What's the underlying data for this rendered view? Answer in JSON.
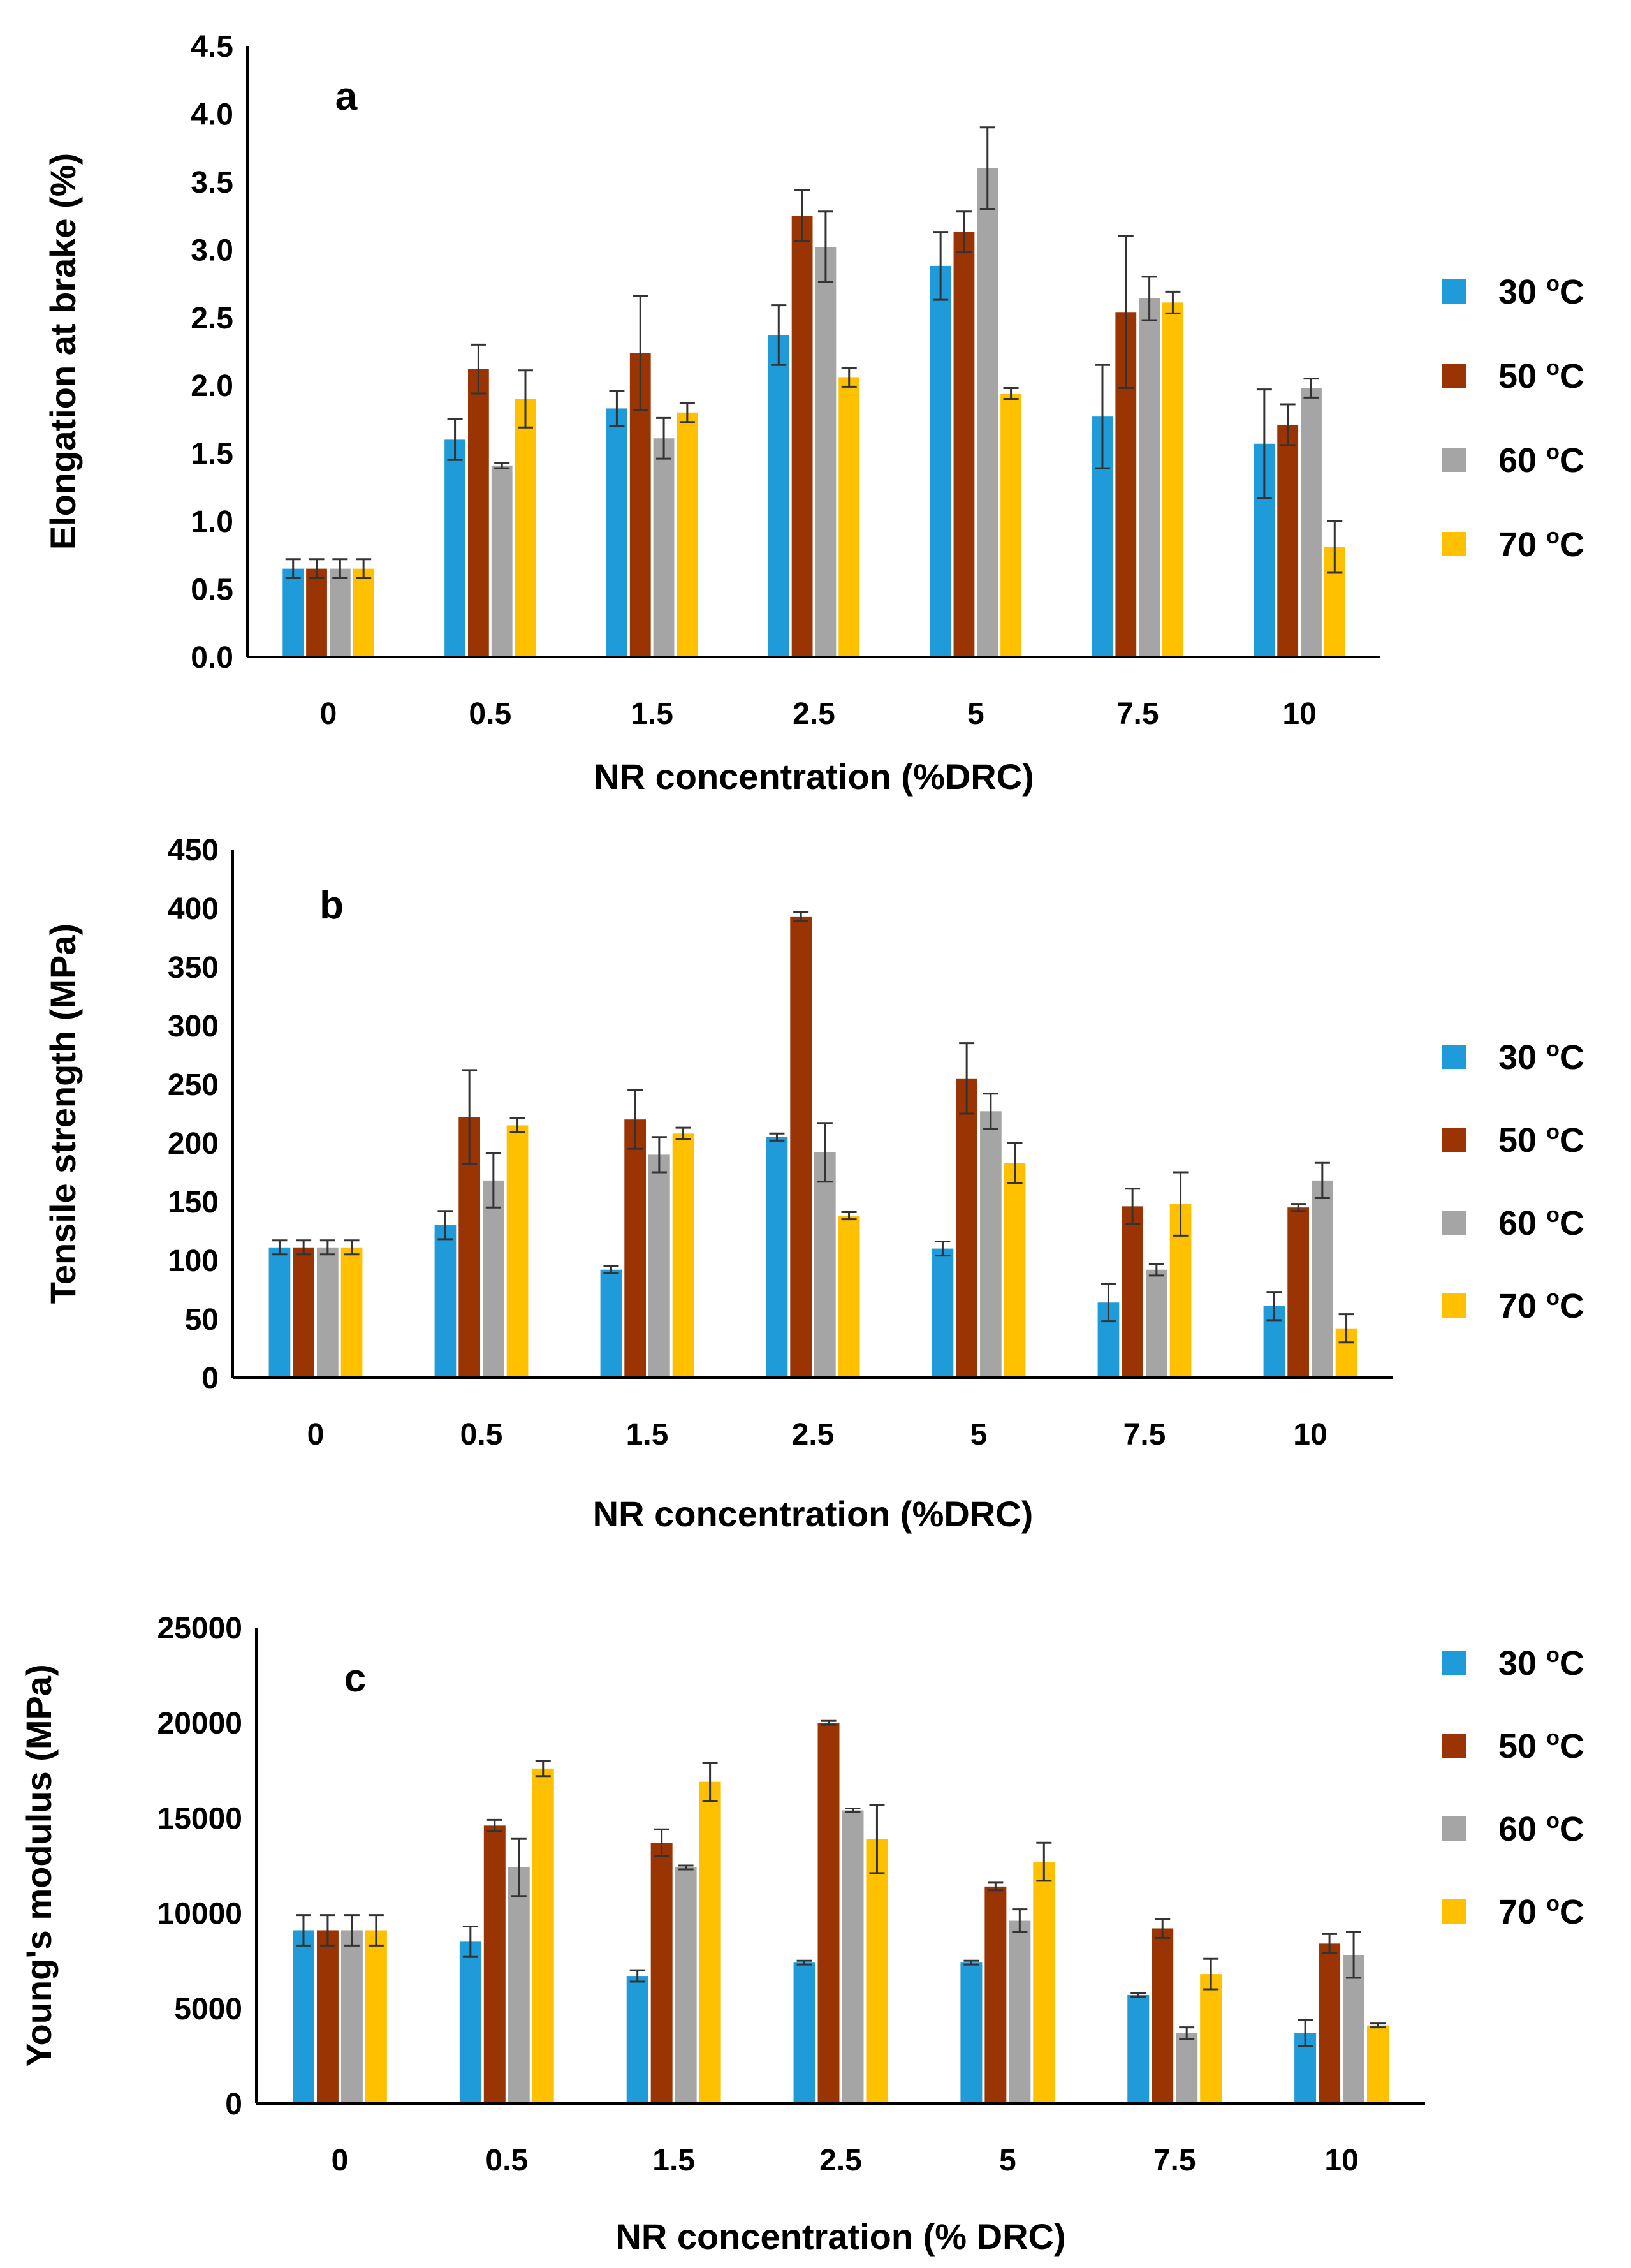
{
  "colors": {
    "30 oC": "#1F9BD9",
    "50 oC": "#9B3403",
    "60 oC": "#A5A5A5",
    "70 oC": "#FFC000"
  },
  "chart_data": [
    {
      "type": "bar",
      "panel_label": "a",
      "title": "",
      "xlabel": "NR concentration (%DRC)",
      "ylabel": "Elongation at brake (%)",
      "ylim": [
        0,
        4.5
      ],
      "ytick_step": 0.5,
      "ytick_decimals": 1,
      "categories": [
        "0",
        "0.5",
        "1.5",
        "2.5",
        "5",
        "7.5",
        "10"
      ],
      "legend_position": "right",
      "series": [
        {
          "name": "30 oC",
          "label_main": "30 ",
          "label_sup": "o",
          "label_unit": "C",
          "values": [
            0.65,
            1.6,
            1.83,
            2.37,
            2.88,
            1.77,
            1.57
          ],
          "errors": [
            0.07,
            0.15,
            0.13,
            0.22,
            0.25,
            0.38,
            0.4
          ]
        },
        {
          "name": "50 oC",
          "label_main": "50 ",
          "label_sup": "o",
          "label_unit": "C",
          "values": [
            0.65,
            2.12,
            2.24,
            3.25,
            3.13,
            2.54,
            1.71
          ],
          "errors": [
            0.07,
            0.18,
            0.42,
            0.19,
            0.15,
            0.56,
            0.15
          ]
        },
        {
          "name": "60 oC",
          "label_main": "60 ",
          "label_sup": "o",
          "label_unit": "C",
          "values": [
            0.65,
            1.41,
            1.61,
            3.02,
            3.6,
            2.64,
            1.98
          ],
          "errors": [
            0.07,
            0.02,
            0.15,
            0.26,
            0.3,
            0.16,
            0.07
          ]
        },
        {
          "name": "70 oC",
          "label_main": "70 ",
          "label_sup": "o",
          "label_unit": "C",
          "values": [
            0.65,
            1.9,
            1.8,
            2.06,
            1.94,
            2.61,
            0.81
          ],
          "errors": [
            0.07,
            0.21,
            0.07,
            0.07,
            0.04,
            0.08,
            0.19
          ]
        }
      ]
    },
    {
      "type": "bar",
      "panel_label": "b",
      "title": "",
      "xlabel": "NR concentration (%DRC)",
      "ylabel": "Tensile strength (MPa)",
      "ylim": [
        0,
        450
      ],
      "ytick_step": 50,
      "ytick_decimals": 0,
      "categories": [
        "0",
        "0.5",
        "1.5",
        "2.5",
        "5",
        "7.5",
        "10"
      ],
      "legend_position": "right",
      "series": [
        {
          "name": "30 oC",
          "label_main": "30 ",
          "label_sup": "o",
          "label_unit": "C",
          "values": [
            111,
            130,
            92,
            205,
            110,
            64,
            61
          ],
          "errors": [
            6,
            12,
            3,
            3,
            6,
            16,
            12
          ]
        },
        {
          "name": "50 oC",
          "label_main": "50 ",
          "label_sup": "o",
          "label_unit": "C",
          "values": [
            111,
            222,
            220,
            393,
            255,
            146,
            145
          ],
          "errors": [
            6,
            40,
            25,
            4,
            30,
            15,
            3
          ]
        },
        {
          "name": "60 oC",
          "label_main": "60 ",
          "label_sup": "o",
          "label_unit": "C",
          "values": [
            111,
            168,
            190,
            192,
            227,
            92,
            168
          ],
          "errors": [
            6,
            23,
            15,
            25,
            15,
            5,
            15
          ]
        },
        {
          "name": "70 oC",
          "label_main": "70 ",
          "label_sup": "o",
          "label_unit": "C",
          "values": [
            111,
            215,
            208,
            138,
            183,
            148,
            42
          ],
          "errors": [
            6,
            6,
            5,
            3,
            17,
            27,
            12
          ]
        }
      ]
    },
    {
      "type": "bar",
      "panel_label": "c",
      "title": "",
      "xlabel": "NR concentration (% DRC)",
      "ylabel": "Young's modulus (MPa)",
      "ylim": [
        0,
        25000
      ],
      "ytick_step": 5000,
      "ytick_decimals": 0,
      "categories": [
        "0",
        "0.5",
        "1.5",
        "2.5",
        "5",
        "7.5",
        "10"
      ],
      "legend_position": "top-right",
      "series": [
        {
          "name": "30 oC",
          "label_main": "30 ",
          "label_sup": "o",
          "label_unit": "C",
          "values": [
            9100,
            8500,
            6700,
            7400,
            7400,
            5700,
            3700
          ],
          "errors": [
            800,
            800,
            300,
            100,
            100,
            100,
            700
          ]
        },
        {
          "name": "50 oC",
          "label_main": "50 ",
          "label_sup": "o",
          "label_unit": "C",
          "values": [
            9100,
            14600,
            13700,
            20000,
            11400,
            9200,
            8400
          ],
          "errors": [
            800,
            300,
            700,
            100,
            200,
            500,
            500
          ]
        },
        {
          "name": "60 oC",
          "label_main": "60 ",
          "label_sup": "o",
          "label_unit": "C",
          "values": [
            9100,
            12400,
            12400,
            15400,
            9600,
            3700,
            7800
          ],
          "errors": [
            800,
            1500,
            100,
            100,
            600,
            300,
            1200
          ]
        },
        {
          "name": "70 oC",
          "label_main": "70 ",
          "label_sup": "o",
          "label_unit": "C",
          "values": [
            9100,
            17600,
            16900,
            13900,
            12700,
            6800,
            4100
          ],
          "errors": [
            800,
            400,
            1000,
            1800,
            1000,
            800,
            100
          ]
        }
      ]
    }
  ]
}
